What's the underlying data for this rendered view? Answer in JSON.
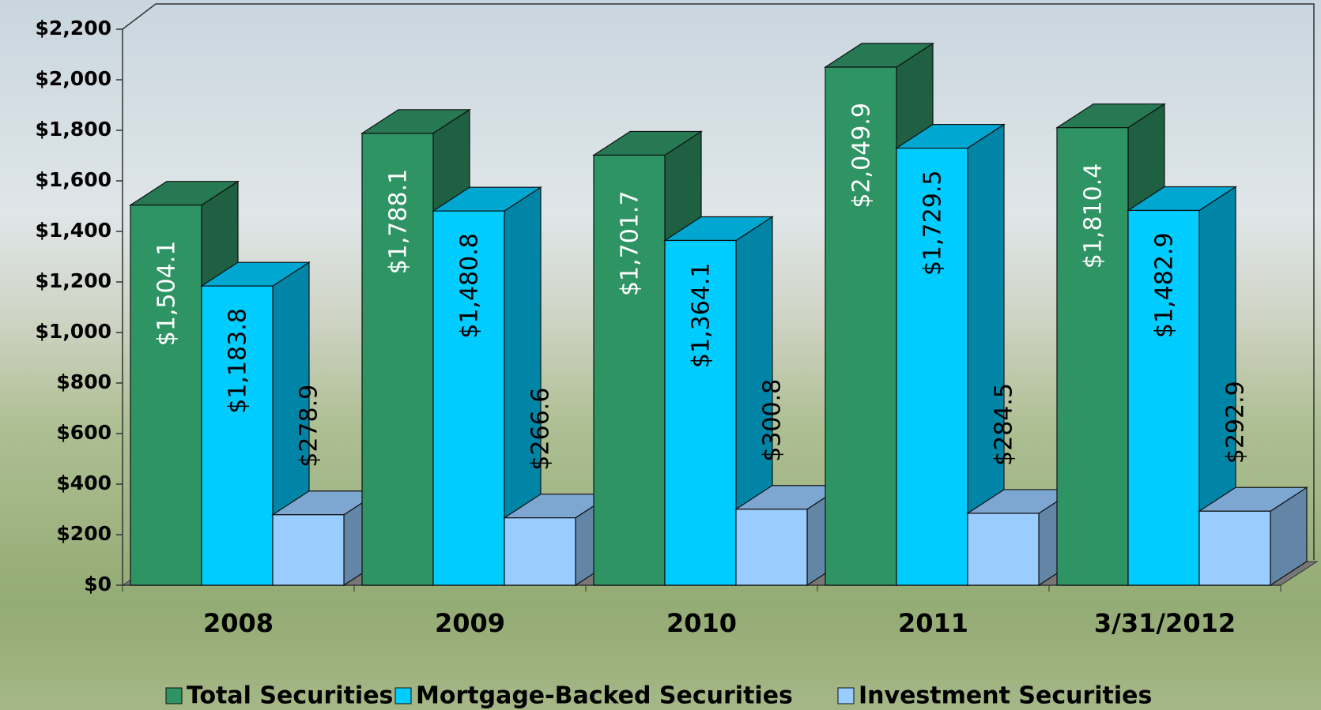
{
  "chart_data": {
    "type": "bar3d",
    "categories": [
      "2008",
      "2009",
      "2010",
      "2011",
      "3/31/2012"
    ],
    "series": [
      {
        "name": "Total Securities",
        "color": "#2e9464",
        "values": [
          1504.1,
          1788.1,
          1701.7,
          2049.9,
          1810.4
        ],
        "value_labels": [
          "$1,504.1",
          "$1,788.1",
          "$1,701.7",
          "$2,049.9",
          "$1,810.4"
        ]
      },
      {
        "name": "Mortgage-Backed Securities",
        "color": "#00ccff",
        "values": [
          1183.8,
          1480.8,
          1364.1,
          1729.5,
          1482.9
        ],
        "value_labels": [
          "$1,183.8",
          "$1,480.8",
          "$1,364.1",
          "$1,729.5",
          "$1,482.9"
        ]
      },
      {
        "name": "Investment Securities",
        "color": "#99ccff",
        "values": [
          278.9,
          266.6,
          300.8,
          284.5,
          292.9
        ],
        "value_labels": [
          "$278.9",
          "$266.6",
          "$300.8",
          "$284.5",
          "$292.9"
        ]
      }
    ],
    "ylim": [
      0,
      2200
    ],
    "yticks": [
      {
        "value": 0,
        "label": "$0"
      },
      {
        "value": 200,
        "label": "$200"
      },
      {
        "value": 400,
        "label": "$400"
      },
      {
        "value": 600,
        "label": "$600"
      },
      {
        "value": 800,
        "label": "$800"
      },
      {
        "value": 1000,
        "label": "$1,000"
      },
      {
        "value": 1200,
        "label": "$1,200"
      },
      {
        "value": 1400,
        "label": "$1,400"
      },
      {
        "value": 1600,
        "label": "$1,600"
      },
      {
        "value": 1800,
        "label": "$1,800"
      },
      {
        "value": 2000,
        "label": "$2,000"
      },
      {
        "value": 2200,
        "label": "$2,200"
      }
    ],
    "legend": "bottom"
  }
}
